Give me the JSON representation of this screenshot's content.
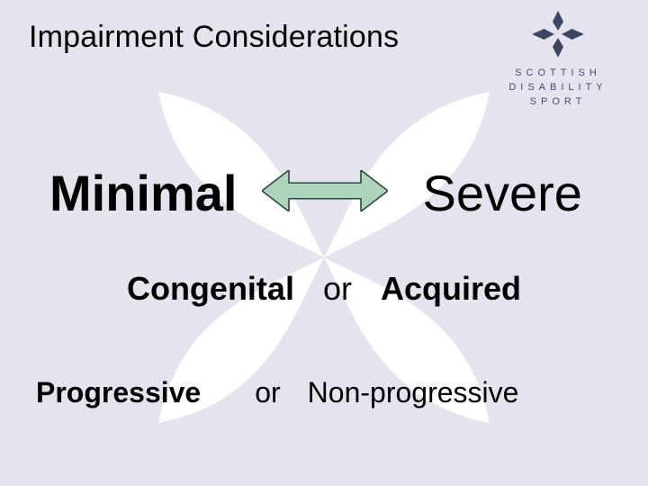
{
  "colors": {
    "background": "#e5e4ee",
    "propeller": "#ffffff",
    "title": "#000000",
    "logo_mark": "#3b4665",
    "logo_text": "#434d6b",
    "text_dark": "#000000",
    "arrow_fill": "#aed3bb",
    "arrow_stroke": "#2d4a3a"
  },
  "title": "Impairment Considerations",
  "logo": {
    "line1": "SCOTTISH",
    "line2": "DISABILITY",
    "line3": "SPORT"
  },
  "row1": {
    "left": "Minimal",
    "right": "Severe"
  },
  "row2": {
    "left": "Congenital",
    "mid": "or",
    "right": "Acquired"
  },
  "row3": {
    "left": "Progressive",
    "mid": "or",
    "right": "Non-progressive"
  },
  "fonts": {
    "title_size": 34,
    "row1_size": 56,
    "row2_size": 36,
    "row3_size": 32,
    "logo_text_size": 11,
    "logo_letter_spacing": 5
  },
  "arrow": {
    "width": 140,
    "height": 46,
    "stroke_width": 1.6
  },
  "bg_propeller": {
    "radius_long": 260,
    "radius_short": 70
  }
}
